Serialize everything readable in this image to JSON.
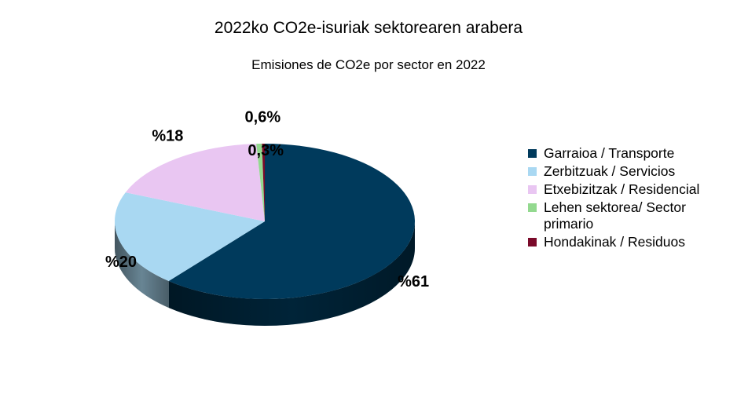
{
  "title": "2022ko CO2e-isuriak sektorearen arabera",
  "subtitle": "Emisiones de CO2e por sector en 2022",
  "chart_data": {
    "type": "pie",
    "title": "2022ko CO2e-isuriak sektorearen arabera",
    "subtitle": "Emisiones de CO2e por sector en 2022",
    "categories": [
      "Garraioa / Transporte",
      "Zerbitzuak / Servicios",
      "Etxebizitzak / Residencial",
      "Lehen sektorea/ Sector primario",
      "Hondakinak / Residuos"
    ],
    "values": [
      61,
      20,
      18,
      0.6,
      0.3
    ],
    "data_labels": [
      "%61",
      "%20",
      "%18",
      "0,6%",
      "0,3%"
    ],
    "colors": [
      "#003a5c",
      "#a9d8f2",
      "#e9c6f2",
      "#93d98f",
      "#7a0a2a"
    ],
    "style": "3d-tilted",
    "legend_position": "right"
  }
}
